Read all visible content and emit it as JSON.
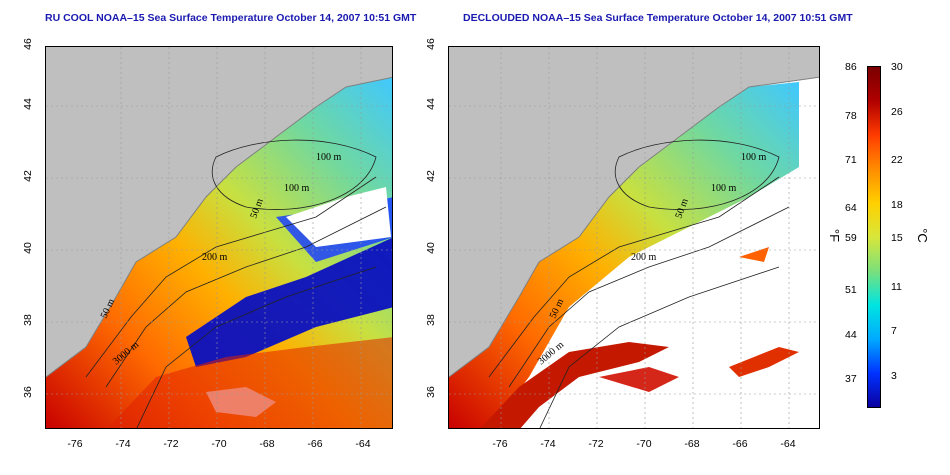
{
  "maps": [
    {
      "title": "RU COOL NOAA–15 Sea Surface Temperature October 14, 2007 10:51 GMT",
      "contour_labels": [
        "100 m",
        "100 m",
        "50 m",
        "200 m",
        "50 m",
        "3000 m"
      ]
    },
    {
      "title": "DECLOUDED NOAA–15 Sea Surface Temperature October 14, 2007 10:51 GMT",
      "contour_labels": [
        "100 m",
        "100 m",
        "50 m",
        "200 m",
        "50 m",
        "3000 m"
      ]
    }
  ],
  "axes": {
    "x_ticks": [
      "-76",
      "-74",
      "-72",
      "-70",
      "-68",
      "-66",
      "-64"
    ],
    "y_ticks": [
      "36",
      "38",
      "40",
      "42",
      "44",
      "46"
    ]
  },
  "colorbar": {
    "fahrenheit_ticks": [
      "86",
      "78",
      "71",
      "64",
      "59",
      "51",
      "44",
      "37"
    ],
    "celsius_ticks": [
      "30",
      "26",
      "22",
      "18",
      "15",
      "11",
      "7",
      "3"
    ],
    "fahrenheit_unit": "°F",
    "celsius_unit": "°C",
    "colors": [
      "#0a00a0",
      "#0033ff",
      "#00aaff",
      "#00e5e0",
      "#7be07b",
      "#d8e63a",
      "#ffd000",
      "#ff8c00",
      "#ff3b00",
      "#b00000",
      "#7a0000"
    ]
  }
}
